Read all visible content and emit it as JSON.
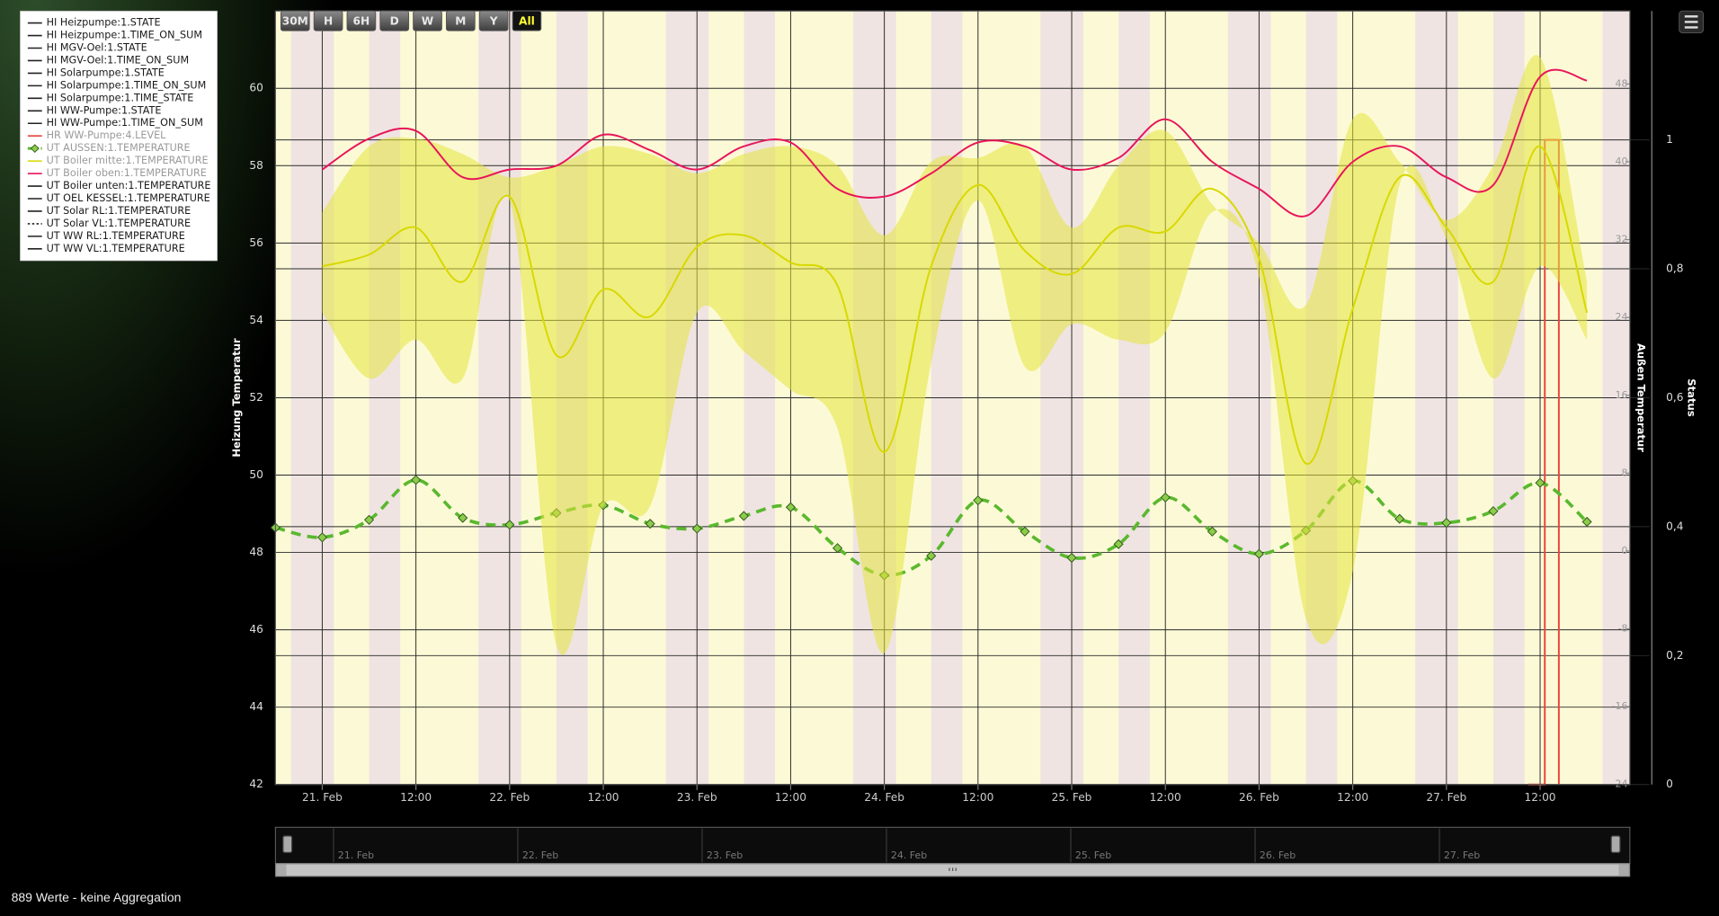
{
  "chart_data": {
    "type": "line",
    "y_title": "Heizung Temperatur",
    "y2_title": "Außen Temperatur",
    "y3_title": "Status",
    "grid": true,
    "xlim": [
      -6,
      167.5
    ],
    "xticks": [
      {
        "value": 0,
        "label": "21. Feb"
      },
      {
        "value": 12,
        "label": "12:00"
      },
      {
        "value": 24,
        "label": "22. Feb"
      },
      {
        "value": 36,
        "label": "12:00"
      },
      {
        "value": 48,
        "label": "23. Feb"
      },
      {
        "value": 60,
        "label": "12:00"
      },
      {
        "value": 72,
        "label": "24. Feb"
      },
      {
        "value": 84,
        "label": "12:00"
      },
      {
        "value": 96,
        "label": "25. Feb"
      },
      {
        "value": 108,
        "label": "12:00"
      },
      {
        "value": 120,
        "label": "26. Feb"
      },
      {
        "value": 132,
        "label": "12:00"
      },
      {
        "value": 144,
        "label": "27. Feb"
      },
      {
        "value": 156,
        "label": "12:00"
      }
    ],
    "ylim": [
      42,
      62
    ],
    "yticks": [
      42,
      44,
      46,
      48,
      50,
      52,
      54,
      56,
      58,
      60
    ],
    "y2lim": [
      -24,
      55.5
    ],
    "y2ticks": [
      -24,
      -16,
      -8,
      0,
      8,
      16,
      24,
      32,
      40,
      48
    ],
    "y3lim": [
      0,
      1.2
    ],
    "y3ticks": [
      0,
      {
        "value": 0.2,
        "label": "0,2"
      },
      {
        "value": 0.4,
        "label": "0,4"
      },
      {
        "value": 0.6,
        "label": "0,6"
      },
      {
        "value": 0.8,
        "label": "0,8"
      },
      1
    ],
    "series": [
      {
        "name": "HI Heizpumpe:1.STATE",
        "color": "#222222"
      },
      {
        "name": "HI Heizpumpe:1.TIME_ON_SUM",
        "color": "#222222"
      },
      {
        "name": "HI MGV-Oel:1.STATE",
        "color": "#222222"
      },
      {
        "name": "HI MGV-Oel:1.TIME_ON_SUM",
        "color": "#222222"
      },
      {
        "name": "HI Solarpumpe:1.STATE",
        "color": "#222222"
      },
      {
        "name": "HI Solarpumpe:1.TIME_ON_SUM",
        "color": "#222222"
      },
      {
        "name": "HI Solarpumpe:1.TIME_STATE",
        "color": "#222222"
      },
      {
        "name": "HI WW-Pumpe:1.STATE",
        "color": "#222222"
      },
      {
        "name": "HI WW-Pumpe:1.TIME_ON_SUM",
        "color": "#222222"
      },
      {
        "name": "HR WW-Pumpe:4.LEVEL",
        "color": "#e8443a",
        "axis": "y3",
        "step": true,
        "legend_muted": true,
        "x": [
          154.5,
          156.6,
          158.4
        ],
        "values": [
          0,
          1,
          0
        ]
      },
      {
        "name": "UT AUSSEN:1.TEMPERATURE",
        "color": "#5ab82e",
        "axis": "y2",
        "dash": "dashed",
        "markers": true,
        "legend_muted": true,
        "x": [
          -6,
          0,
          6,
          12,
          18,
          24,
          30,
          36,
          42,
          48,
          54,
          60,
          66,
          72,
          78,
          84,
          90,
          96,
          102,
          108,
          114,
          120,
          126,
          132,
          138,
          144,
          150,
          156,
          162
        ],
        "values": [
          2.4,
          1.4,
          3.2,
          7.3,
          3.4,
          2.7,
          3.9,
          4.7,
          2.8,
          2.3,
          3.6,
          4.5,
          0.3,
          -2.5,
          -0.5,
          5.2,
          2.0,
          -0.7,
          0.7,
          5.5,
          2.0,
          -0.3,
          2.1,
          7.2,
          3.3,
          2.9,
          4.1,
          7.0,
          3.0
        ]
      },
      {
        "name": "UT Boiler mitte:1.TEMPERATURE",
        "color": "#d8d800",
        "axis": "y",
        "legend_muted": true,
        "range_color": "#e4e43c",
        "x": [
          0,
          6,
          12,
          18,
          24,
          30,
          36,
          42,
          48,
          54,
          60,
          66,
          72,
          78,
          84,
          90,
          96,
          102,
          108,
          114,
          120,
          126,
          132,
          138,
          144,
          150,
          156,
          162
        ],
        "values": [
          55.4,
          55.7,
          56.4,
          55.0,
          57.2,
          53.1,
          54.8,
          54.1,
          55.9,
          56.2,
          55.5,
          54.9,
          50.6,
          55.4,
          57.5,
          55.8,
          55.2,
          56.4,
          56.3,
          57.4,
          55.6,
          50.3,
          54.3,
          57.7,
          56.4,
          55.0,
          58.5,
          54.2
        ],
        "range_high": [
          56.8,
          58.5,
          58.7,
          58.3,
          57.7,
          58.0,
          58.5,
          58.3,
          57.8,
          58.3,
          58.5,
          58.0,
          56.2,
          58.1,
          58.2,
          58.5,
          56.4,
          58.0,
          58.9,
          57.0,
          56.0,
          54.4,
          59.2,
          58.1,
          56.6,
          58.0,
          60.8,
          55.0
        ],
        "range_low": [
          54.2,
          52.5,
          53.5,
          52.5,
          57.1,
          45.6,
          49.2,
          49.2,
          54.2,
          53.2,
          52.2,
          51.2,
          45.4,
          52.9,
          57.1,
          52.8,
          53.9,
          53.5,
          53.7,
          56.8,
          55.1,
          46.3,
          47.5,
          57.5,
          56.1,
          52.5,
          55.4,
          53.5
        ]
      },
      {
        "name": "UT Boiler oben:1.TEMPERATURE",
        "color": "#e8155a",
        "axis": "y",
        "legend_muted": true,
        "x": [
          0,
          6,
          12,
          18,
          24,
          30,
          36,
          42,
          48,
          54,
          60,
          66,
          72,
          78,
          84,
          90,
          96,
          102,
          108,
          114,
          120,
          126,
          132,
          138,
          144,
          150,
          156,
          162
        ],
        "values": [
          57.9,
          58.7,
          58.9,
          57.7,
          57.9,
          58.0,
          58.8,
          58.4,
          57.9,
          58.5,
          58.6,
          57.4,
          57.2,
          57.8,
          58.6,
          58.5,
          57.9,
          58.2,
          59.2,
          58.1,
          57.4,
          56.7,
          58.1,
          58.5,
          57.7,
          57.5,
          60.3,
          60.2
        ]
      },
      {
        "name": "UT Boiler unten:1.TEMPERATURE",
        "color": "#222222"
      },
      {
        "name": "UT OEL KESSEL:1.TEMPERATURE",
        "color": "#222222"
      },
      {
        "name": "UT Solar RL:1.TEMPERATURE",
        "color": "#222222"
      },
      {
        "name": "UT Solar VL:1.TEMPERATURE",
        "color": "#222222",
        "dash": "dotted"
      },
      {
        "name": "UT WW RL:1.TEMPERATURE",
        "color": "#222222"
      },
      {
        "name": "UT WW VL:1.TEMPERATURE",
        "color": "#222222"
      }
    ]
  },
  "range_selector": {
    "buttons": [
      "30M",
      "H",
      "6H",
      "D",
      "W",
      "M",
      "Y",
      "All"
    ],
    "selected": 7
  },
  "navigator": {
    "labels": [
      "21. Feb",
      "22. Feb",
      "23. Feb",
      "24. Feb",
      "25. Feb",
      "26. Feb",
      "27. Feb"
    ]
  },
  "footer": "889 Werte - keine Aggregation"
}
